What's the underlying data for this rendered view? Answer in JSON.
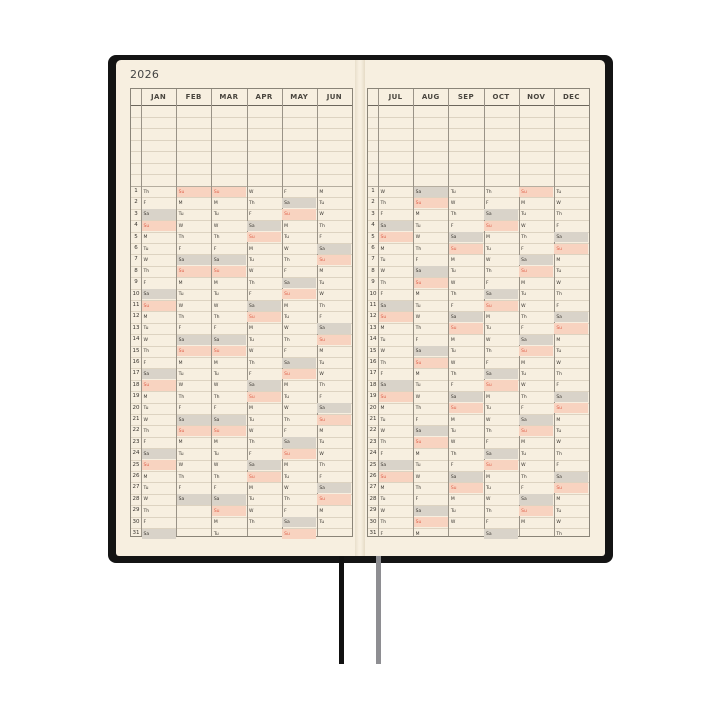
{
  "year": "2026",
  "colors": {
    "cover": "#141414",
    "paper": "#f7efe0",
    "saturday": "#d9d3c9",
    "sunday": "#f8d3c0",
    "sunday_text": "#e0604a",
    "ribbon_black": "#111111",
    "ribbon_gray": "#8e8e92"
  },
  "left_page": {
    "months": [
      {
        "name": "JAN",
        "days": [
          "Th",
          "F",
          "Sa",
          "Su",
          "M",
          "Tu",
          "W",
          "Th",
          "F",
          "Sa",
          "Su",
          "M",
          "Tu",
          "W",
          "Th",
          "F",
          "Sa",
          "Su",
          "M",
          "Tu",
          "W",
          "Th",
          "F",
          "Sa",
          "Su",
          "M",
          "Tu",
          "W",
          "Th",
          "F",
          "Sa"
        ]
      },
      {
        "name": "FEB",
        "days": [
          "Su",
          "M",
          "Tu",
          "W",
          "Th",
          "F",
          "Sa",
          "Su",
          "M",
          "Tu",
          "W",
          "Th",
          "F",
          "Sa",
          "Su",
          "M",
          "Tu",
          "W",
          "Th",
          "F",
          "Sa",
          "Su",
          "M",
          "Tu",
          "W",
          "Th",
          "F",
          "Sa"
        ]
      },
      {
        "name": "MAR",
        "days": [
          "Su",
          "M",
          "Tu",
          "W",
          "Th",
          "F",
          "Sa",
          "Su",
          "M",
          "Tu",
          "W",
          "Th",
          "F",
          "Sa",
          "Su",
          "M",
          "Tu",
          "W",
          "Th",
          "F",
          "Sa",
          "Su",
          "M",
          "Tu",
          "W",
          "Th",
          "F",
          "Sa",
          "Su",
          "M",
          "Tu"
        ]
      },
      {
        "name": "APR",
        "days": [
          "W",
          "Th",
          "F",
          "Sa",
          "Su",
          "M",
          "Tu",
          "W",
          "Th",
          "F",
          "Sa",
          "Su",
          "M",
          "Tu",
          "W",
          "Th",
          "F",
          "Sa",
          "Su",
          "M",
          "Tu",
          "W",
          "Th",
          "F",
          "Sa",
          "Su",
          "M",
          "Tu",
          "W",
          "Th"
        ]
      },
      {
        "name": "MAY",
        "days": [
          "F",
          "Sa",
          "Su",
          "M",
          "Tu",
          "W",
          "Th",
          "F",
          "Sa",
          "Su",
          "M",
          "Tu",
          "W",
          "Th",
          "F",
          "Sa",
          "Su",
          "M",
          "Tu",
          "W",
          "Th",
          "F",
          "Sa",
          "Su",
          "M",
          "Tu",
          "W",
          "Th",
          "F",
          "Sa",
          "Su"
        ]
      },
      {
        "name": "JUN",
        "days": [
          "M",
          "Tu",
          "W",
          "Th",
          "F",
          "Sa",
          "Su",
          "M",
          "Tu",
          "W",
          "Th",
          "F",
          "Sa",
          "Su",
          "M",
          "Tu",
          "W",
          "Th",
          "F",
          "Sa",
          "Su",
          "M",
          "Tu",
          "W",
          "Th",
          "F",
          "Sa",
          "Su",
          "M",
          "Tu"
        ]
      }
    ]
  },
  "right_page": {
    "months": [
      {
        "name": "JUL",
        "days": [
          "W",
          "Th",
          "F",
          "Sa",
          "Su",
          "M",
          "Tu",
          "W",
          "Th",
          "F",
          "Sa",
          "Su",
          "M",
          "Tu",
          "W",
          "Th",
          "F",
          "Sa",
          "Su",
          "M",
          "Tu",
          "W",
          "Th",
          "F",
          "Sa",
          "Su",
          "M",
          "Tu",
          "W",
          "Th",
          "F"
        ]
      },
      {
        "name": "AUG",
        "days": [
          "Sa",
          "Su",
          "M",
          "Tu",
          "W",
          "Th",
          "F",
          "Sa",
          "Su",
          "M",
          "Tu",
          "W",
          "Th",
          "F",
          "Sa",
          "Su",
          "M",
          "Tu",
          "W",
          "Th",
          "F",
          "Sa",
          "Su",
          "M",
          "Tu",
          "W",
          "Th",
          "F",
          "Sa",
          "Su",
          "M"
        ]
      },
      {
        "name": "SEP",
        "days": [
          "Tu",
          "W",
          "Th",
          "F",
          "Sa",
          "Su",
          "M",
          "Tu",
          "W",
          "Th",
          "F",
          "Sa",
          "Su",
          "M",
          "Tu",
          "W",
          "Th",
          "F",
          "Sa",
          "Su",
          "M",
          "Tu",
          "W",
          "Th",
          "F",
          "Sa",
          "Su",
          "M",
          "Tu",
          "W"
        ]
      },
      {
        "name": "OCT",
        "days": [
          "Th",
          "F",
          "Sa",
          "Su",
          "M",
          "Tu",
          "W",
          "Th",
          "F",
          "Sa",
          "Su",
          "M",
          "Tu",
          "W",
          "Th",
          "F",
          "Sa",
          "Su",
          "M",
          "Tu",
          "W",
          "Th",
          "F",
          "Sa",
          "Su",
          "M",
          "Tu",
          "W",
          "Th",
          "F",
          "Sa"
        ]
      },
      {
        "name": "NOV",
        "days": [
          "Su",
          "M",
          "Tu",
          "W",
          "Th",
          "F",
          "Sa",
          "Su",
          "M",
          "Tu",
          "W",
          "Th",
          "F",
          "Sa",
          "Su",
          "M",
          "Tu",
          "W",
          "Th",
          "F",
          "Sa",
          "Su",
          "M",
          "Tu",
          "W",
          "Th",
          "F",
          "Sa",
          "Su",
          "M"
        ]
      },
      {
        "name": "DEC",
        "days": [
          "Tu",
          "W",
          "Th",
          "F",
          "Sa",
          "Su",
          "M",
          "Tu",
          "W",
          "Th",
          "F",
          "Sa",
          "Su",
          "M",
          "Tu",
          "W",
          "Th",
          "F",
          "Sa",
          "Su",
          "M",
          "Tu",
          "W",
          "Th",
          "F",
          "Sa",
          "Su",
          "M",
          "Tu",
          "W",
          "Th"
        ]
      }
    ]
  },
  "day_numbers": [
    "1",
    "2",
    "3",
    "4",
    "5",
    "6",
    "7",
    "8",
    "9",
    "10",
    "11",
    "12",
    "13",
    "14",
    "15",
    "16",
    "17",
    "18",
    "19",
    "20",
    "21",
    "22",
    "23",
    "24",
    "25",
    "26",
    "27",
    "28",
    "29",
    "30",
    "31"
  ]
}
